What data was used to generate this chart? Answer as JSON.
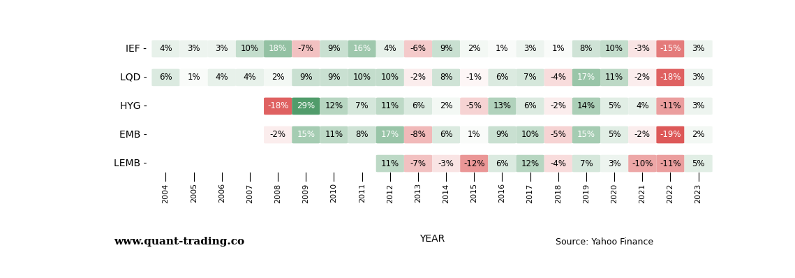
{
  "years": [
    2004,
    2005,
    2006,
    2007,
    2008,
    2009,
    2010,
    2011,
    2012,
    2013,
    2014,
    2015,
    2016,
    2017,
    2018,
    2019,
    2020,
    2021,
    2022,
    2023
  ],
  "tickers": [
    "IEF",
    "LQD",
    "HYG",
    "EMB",
    "LEMB"
  ],
  "data": {
    "IEF": [
      4,
      3,
      3,
      10,
      18,
      -7,
      9,
      16,
      4,
      -6,
      9,
      2,
      1,
      3,
      1,
      8,
      10,
      -3,
      -15,
      3
    ],
    "LQD": [
      6,
      1,
      4,
      4,
      2,
      9,
      9,
      10,
      10,
      -2,
      8,
      -1,
      6,
      7,
      -4,
      17,
      11,
      -2,
      -18,
      3
    ],
    "HYG": [
      null,
      null,
      null,
      null,
      -18,
      29,
      12,
      7,
      11,
      6,
      2,
      -5,
      13,
      6,
      -2,
      14,
      5,
      4,
      -11,
      3
    ],
    "EMB": [
      null,
      null,
      null,
      null,
      -2,
      15,
      11,
      8,
      17,
      -8,
      6,
      1,
      9,
      10,
      -5,
      15,
      5,
      -2,
      -19,
      2
    ],
    "LEMB": [
      null,
      null,
      null,
      null,
      null,
      null,
      null,
      null,
      11,
      -7,
      -3,
      -12,
      6,
      12,
      -4,
      7,
      3,
      -10,
      -11,
      5
    ]
  },
  "vmin": -20,
  "vmax": 30,
  "title_website": "www.quant-trading.co",
  "title_source": "Source: Yahoo Finance",
  "xlabel": "YEAR",
  "background_color": "#ffffff"
}
